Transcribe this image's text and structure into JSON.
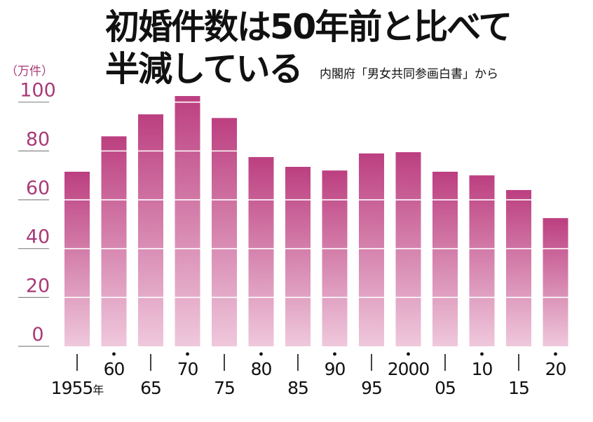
{
  "title_line1": "初婚件数は50年前と比べて",
  "title_line2": "半減している",
  "source": "内閣府「男女共同参画白書」から",
  "chart_data": {
    "type": "bar",
    "unit_label": "（万件）",
    "categories": [
      "1955",
      "60",
      "65",
      "70",
      "75",
      "80",
      "85",
      "90",
      "95",
      "2000",
      "05",
      "10",
      "15",
      "20"
    ],
    "category_labels": [
      "1955年",
      "60",
      "65",
      "70",
      "75",
      "80",
      "85",
      "90",
      "95",
      "2000",
      "05",
      "10",
      "15",
      "20"
    ],
    "values": [
      71.5,
      86,
      95,
      102.5,
      93.5,
      77.5,
      73.5,
      72,
      79,
      79.5,
      71.5,
      70,
      64,
      52.5
    ],
    "yticks": [
      0,
      20,
      40,
      60,
      80,
      100
    ],
    "ylim": [
      0,
      102.5
    ],
    "grid": true,
    "colors": {
      "bar_top": "#bc3f80",
      "bar_bottom": "#efc8dc",
      "gridline": "#ffffff",
      "axis_tick_text": "#a83a78",
      "axis_line": "#888888"
    }
  }
}
